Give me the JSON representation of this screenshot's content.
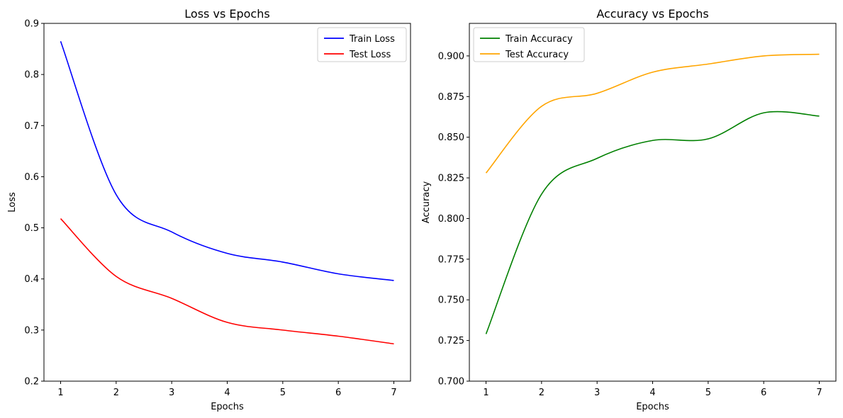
{
  "chart_data": [
    {
      "type": "line",
      "title": "Loss vs Epochs",
      "xlabel": "Epochs",
      "ylabel": "Loss",
      "xlim": [
        0.7,
        7.3
      ],
      "ylim": [
        0.2,
        0.9
      ],
      "xticks": [
        1,
        2,
        3,
        4,
        5,
        6,
        7
      ],
      "yticks": [
        0.2,
        0.3,
        0.4,
        0.5,
        0.6,
        0.7,
        0.8,
        0.9
      ],
      "ytick_labels": [
        "0.2",
        "0.3",
        "0.4",
        "0.5",
        "0.6",
        "0.7",
        "0.8",
        "0.9"
      ],
      "legend_position": "top-right",
      "grid": false,
      "x": [
        1,
        2,
        3,
        4,
        5,
        6,
        7
      ],
      "series": [
        {
          "name": "Train Loss",
          "color": "#0000ff",
          "values": [
            0.865,
            0.565,
            0.492,
            0.45,
            0.433,
            0.41,
            0.397
          ]
        },
        {
          "name": "Test Loss",
          "color": "#ff0000",
          "values": [
            0.518,
            0.405,
            0.362,
            0.315,
            0.3,
            0.288,
            0.273
          ]
        }
      ]
    },
    {
      "type": "line",
      "title": "Accuracy vs Epochs",
      "xlabel": "Epochs",
      "ylabel": "Accuracy",
      "xlim": [
        0.7,
        7.3
      ],
      "ylim": [
        0.7,
        0.92
      ],
      "xticks": [
        1,
        2,
        3,
        4,
        5,
        6,
        7
      ],
      "yticks": [
        0.7,
        0.725,
        0.75,
        0.775,
        0.8,
        0.825,
        0.85,
        0.875,
        0.9
      ],
      "ytick_labels": [
        "0.700",
        "0.725",
        "0.750",
        "0.775",
        "0.800",
        "0.825",
        "0.850",
        "0.875",
        "0.900"
      ],
      "legend_position": "top-left",
      "grid": false,
      "x": [
        1,
        2,
        3,
        4,
        5,
        6,
        7
      ],
      "series": [
        {
          "name": "Train Accuracy",
          "color": "#008000",
          "values": [
            0.729,
            0.815,
            0.837,
            0.848,
            0.849,
            0.865,
            0.863
          ]
        },
        {
          "name": "Test Accuracy",
          "color": "#ffa500",
          "values": [
            0.828,
            0.869,
            0.877,
            0.89,
            0.895,
            0.9,
            0.901
          ]
        }
      ]
    }
  ]
}
